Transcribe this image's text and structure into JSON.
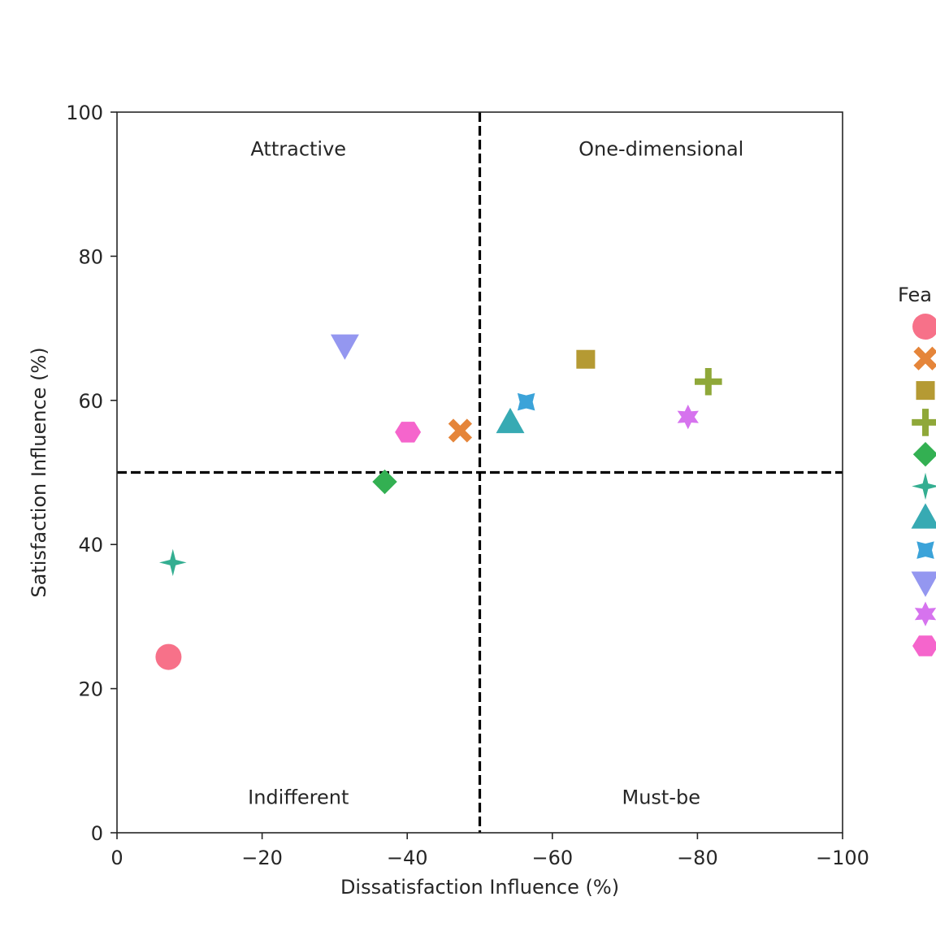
{
  "chart_data": {
    "type": "scatter",
    "title": "",
    "xlabel": "Dissatisfaction Influence (%)",
    "ylabel": "Satisfaction Influence (%)",
    "xlim": [
      0,
      -100
    ],
    "ylim": [
      0,
      100
    ],
    "xticks": [
      0,
      -20,
      -40,
      -60,
      -80,
      -100
    ],
    "xtick_labels": [
      "0",
      "−20",
      "−40",
      "−60",
      "−80",
      "−100"
    ],
    "yticks": [
      0,
      20,
      40,
      60,
      80,
      100
    ],
    "ytick_labels": [
      "0",
      "20",
      "40",
      "60",
      "80",
      "100"
    ],
    "grid": false,
    "reference_lines": {
      "x": -50,
      "y": 50,
      "style": "dashed",
      "color": "#000000"
    },
    "quadrant_labels": [
      {
        "text": "Attractive",
        "x": -25,
        "y": 95
      },
      {
        "text": "One-dimensional",
        "x": -75,
        "y": 95
      },
      {
        "text": "Indifferent",
        "x": -25,
        "y": 5
      },
      {
        "text": "Must-be",
        "x": -75,
        "y": 5
      }
    ],
    "legend": {
      "title": "Fea",
      "placement": "right"
    },
    "points": [
      {
        "x": -7.1,
        "y": 24.4,
        "color": "#f77189",
        "marker": "circle"
      },
      {
        "x": -47.3,
        "y": 55.8,
        "color": "#e5853a",
        "marker": "x"
      },
      {
        "x": -64.6,
        "y": 65.7,
        "color": "#b59a33",
        "marker": "square"
      },
      {
        "x": -81.5,
        "y": 62.6,
        "color": "#8fa839",
        "marker": "plus"
      },
      {
        "x": -36.9,
        "y": 48.7,
        "color": "#33b052",
        "marker": "diamond"
      },
      {
        "x": -7.7,
        "y": 37.5,
        "color": "#34ae91",
        "marker": "star4"
      },
      {
        "x": -54.2,
        "y": 56.9,
        "color": "#37aab3",
        "marker": "triangle-up"
      },
      {
        "x": -56.4,
        "y": 59.8,
        "color": "#3ba3d9",
        "marker": "star4-fat"
      },
      {
        "x": -31.4,
        "y": 67.7,
        "color": "#9497f0",
        "marker": "triangle-down"
      },
      {
        "x": -78.7,
        "y": 57.7,
        "color": "#d673ee",
        "marker": "star6"
      },
      {
        "x": -40.1,
        "y": 55.6,
        "color": "#f565cc",
        "marker": "hexagon"
      }
    ]
  }
}
